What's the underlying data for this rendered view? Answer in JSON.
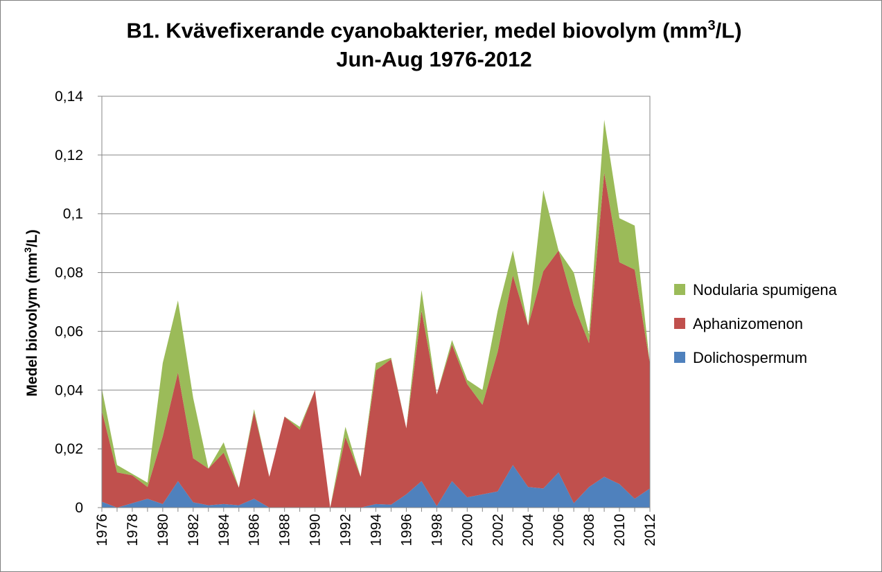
{
  "chart_data": {
    "type": "area",
    "stacked": true,
    "title_main": "B1. Kvävefixerande cyanobakterier, medel biovolym (mm",
    "title_sup": "3",
    "title_end": "/L)",
    "subtitle": "Jun-Aug 1976-2012",
    "ylabel_main": "Medel biovolym (mm",
    "ylabel_sup": "3",
    "ylabel_end": "/L)",
    "ylim": [
      0,
      0.14
    ],
    "y_ticks": [
      {
        "v": 0,
        "label": "0"
      },
      {
        "v": 0.02,
        "label": "0,02"
      },
      {
        "v": 0.04,
        "label": "0,04"
      },
      {
        "v": 0.06,
        "label": "0,06"
      },
      {
        "v": 0.08,
        "label": "0,08"
      },
      {
        "v": 0.1,
        "label": "0,1"
      },
      {
        "v": 0.12,
        "label": "0,12"
      },
      {
        "v": 0.14,
        "label": "0,14"
      }
    ],
    "x_tick_labels": [
      "1976",
      "1978",
      "1980",
      "1982",
      "1984",
      "1986",
      "1988",
      "1990",
      "1992",
      "1994",
      "1996",
      "1998",
      "2000",
      "2002",
      "2004",
      "2006",
      "2008",
      "2010",
      "2012"
    ],
    "grid": true,
    "legend_position": "right",
    "x": [
      1976,
      1977,
      1978,
      1979,
      1980,
      1981,
      1982,
      1983,
      1984,
      1985,
      1986,
      1987,
      1988,
      1989,
      1990,
      1991,
      1992,
      1993,
      1994,
      1995,
      1996,
      1997,
      1998,
      1999,
      2000,
      2001,
      2002,
      2003,
      2004,
      2005,
      2006,
      2007,
      2008,
      2009,
      2010,
      2011,
      2012
    ],
    "series": [
      {
        "name": "Dolichospermum",
        "color": "#4f81bd",
        "values": [
          0.002,
          0.0,
          0.0015,
          0.003,
          0.0012,
          0.009,
          0.0018,
          0.0008,
          0.0012,
          0.0008,
          0.003,
          0.0,
          0.0,
          0.0,
          0.0,
          0.0,
          0.0,
          0.0,
          0.0012,
          0.001,
          0.0045,
          0.009,
          0.0005,
          0.009,
          0.0035,
          0.0045,
          0.0055,
          0.0145,
          0.007,
          0.0065,
          0.012,
          0.0015,
          0.007,
          0.0105,
          0.008,
          0.003,
          0.0065
        ]
      },
      {
        "name": "Aphanizomenon",
        "color": "#c0504d",
        "values": [
          0.031,
          0.012,
          0.0095,
          0.004,
          0.023,
          0.037,
          0.015,
          0.0125,
          0.0175,
          0.006,
          0.0295,
          0.0105,
          0.031,
          0.0265,
          0.04,
          0.0,
          0.024,
          0.0105,
          0.0455,
          0.0495,
          0.0225,
          0.058,
          0.038,
          0.0465,
          0.0385,
          0.0305,
          0.0475,
          0.0645,
          0.055,
          0.074,
          0.0755,
          0.0675,
          0.049,
          0.1035,
          0.0755,
          0.078,
          0.0425
        ]
      },
      {
        "name": "Nodularia spumigena",
        "color": "#9bbb59",
        "values": [
          0.0075,
          0.0025,
          0.0005,
          0.0015,
          0.025,
          0.0245,
          0.0205,
          0.0,
          0.0035,
          0.0,
          0.001,
          0.0,
          0.0,
          0.001,
          0.0,
          0.0,
          0.0035,
          0.0,
          0.0025,
          0.0005,
          0.0,
          0.007,
          0.0,
          0.0015,
          0.0015,
          0.005,
          0.014,
          0.0085,
          0.0,
          0.0275,
          0.0,
          0.011,
          0.003,
          0.018,
          0.015,
          0.015,
          0.0
        ]
      }
    ]
  }
}
